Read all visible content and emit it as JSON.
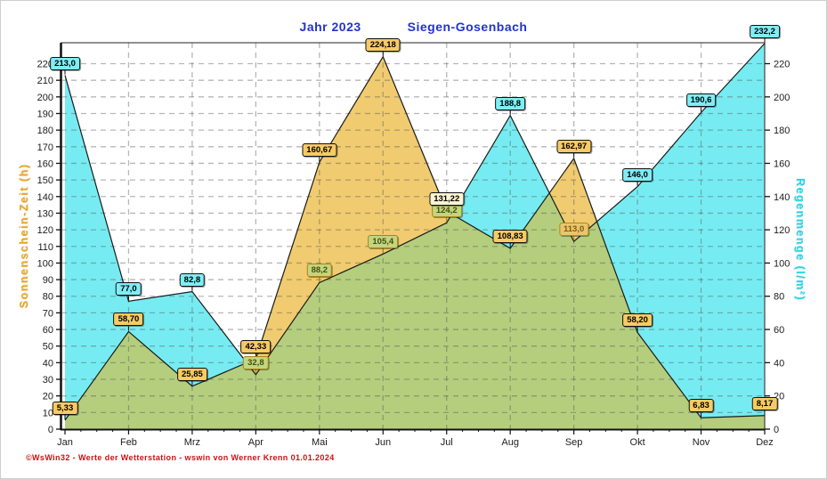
{
  "title": {
    "part1": "Jahr  2023",
    "part2": "Siegen-Gosenbach"
  },
  "footer": {
    "text": "©WsWin32  -  Werte der Wetterstation  -  wswin von Werner Krenn   01.01.2024"
  },
  "axes": {
    "left_title": "Sonnenschein-Zeit  (h)",
    "right_title": "Regenmenge  (l/m²)",
    "left_ticks": [
      0,
      10,
      20,
      30,
      40,
      50,
      60,
      70,
      80,
      90,
      100,
      110,
      120,
      130,
      140,
      150,
      160,
      170,
      180,
      190,
      200,
      210,
      220
    ],
    "right_ticks": [
      0,
      20,
      40,
      60,
      80,
      100,
      120,
      140,
      160,
      180,
      200,
      220
    ]
  },
  "chart_data": {
    "type": "area",
    "title": "Jahr 2023 Siegen-Gosenbach",
    "categories": [
      "Jan",
      "Feb",
      "Mrz",
      "Apr",
      "Mai",
      "Jun",
      "Jul",
      "Aug",
      "Sep",
      "Okt",
      "Nov",
      "Dez"
    ],
    "series": [
      {
        "name": "Regenmenge",
        "unit": "l/m²",
        "color": "#76ecf2",
        "values": [
          213.0,
          77.0,
          82.8,
          32.8,
          88.2,
          105.4,
          124.2,
          188.8,
          113.0,
          146.0,
          190.6,
          232.2
        ],
        "labels": [
          "213,0",
          "77,0",
          "82,8",
          "32,8",
          "88,2",
          "105,4",
          "124,2",
          "188,8",
          "113,0",
          "146,0",
          "190,6",
          "232,2"
        ],
        "label_styles": [
          "cyan",
          "cyan",
          "cyan",
          "green",
          "green",
          "green",
          "green",
          "cyan",
          "tan",
          "cyan",
          "cyan",
          "cyan"
        ]
      },
      {
        "name": "Sonnenschein-Zeit",
        "unit": "h",
        "color": "#f0cb70",
        "values": [
          5.33,
          58.7,
          25.85,
          42.33,
          160.67,
          224.18,
          131.22,
          108.83,
          162.97,
          58.2,
          6.83,
          8.17
        ],
        "labels": [
          "5,33",
          "58,70",
          "25,85",
          "42,33",
          "160,67",
          "224,18",
          "131,22",
          "108,83",
          "162,97",
          "58,20",
          "6,83",
          "8,17"
        ],
        "label_styles": [
          "gold",
          "gold",
          "gold",
          "gold",
          "gold",
          "gold",
          "cream",
          "gold",
          "gold",
          "gold",
          "gold",
          "gold"
        ]
      }
    ],
    "overlap_color": "#b4ce7d",
    "ylim": [
      0,
      232.6
    ],
    "grid": true,
    "legend_position": "none"
  }
}
